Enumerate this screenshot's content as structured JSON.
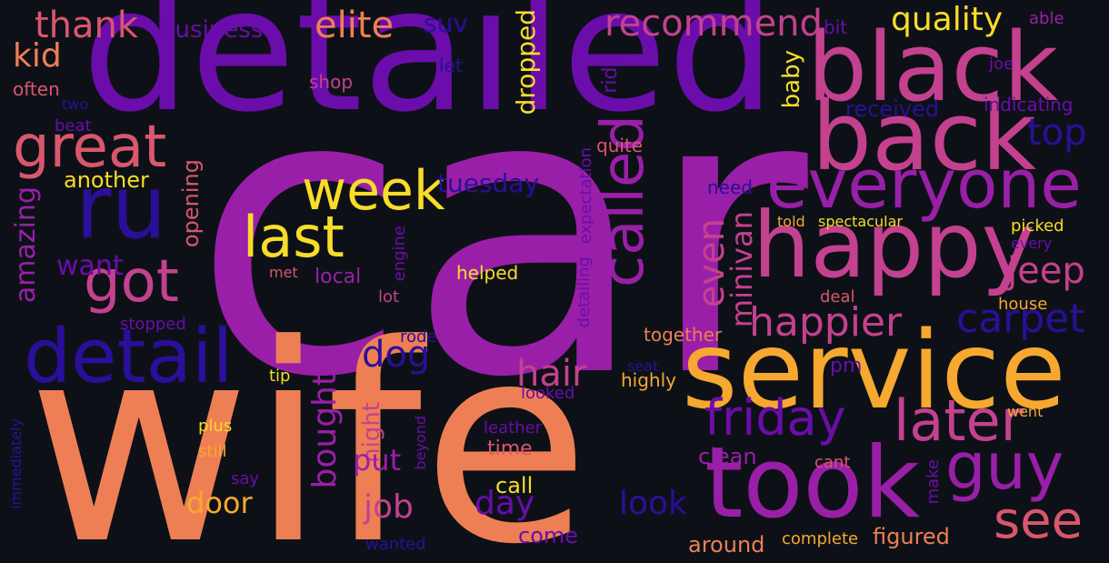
{
  "palette": {
    "background": "#0d1117",
    "deep_blue": "#2a0f9a",
    "violet": "#6a0dab",
    "purple": "#9a1fa8",
    "magenta": "#c4418f",
    "rose": "#d9576d",
    "salmon": "#ee7f55",
    "orange": "#f7a830",
    "yellow": "#f8dc2a"
  },
  "words": [
    {
      "text": "car",
      "color": "#9a1fa8"
    },
    {
      "text": "wife",
      "color": "#ee7f55"
    },
    {
      "text": "detailed",
      "color": "#6a0dab"
    },
    {
      "text": "service",
      "color": "#f7a830"
    },
    {
      "text": "took",
      "color": "#9a1fa8"
    },
    {
      "text": "black",
      "color": "#c4418f"
    },
    {
      "text": "back",
      "color": "#c4418f"
    },
    {
      "text": "happy",
      "color": "#c4418f"
    },
    {
      "text": "everyone",
      "color": "#9a1fa8"
    },
    {
      "text": "ru",
      "color": "#2a0f9a"
    },
    {
      "text": "detail",
      "color": "#2a0f9a"
    },
    {
      "text": "great",
      "color": "#d9576d"
    },
    {
      "text": "got",
      "color": "#c4418f"
    },
    {
      "text": "week",
      "color": "#f8dc2a"
    },
    {
      "text": "last",
      "color": "#f8dc2a"
    },
    {
      "text": "called",
      "color": "#9a1fa8"
    },
    {
      "text": "guy",
      "color": "#9a1fa8"
    },
    {
      "text": "later",
      "color": "#c4418f"
    },
    {
      "text": "friday",
      "color": "#6a0dab"
    },
    {
      "text": "see",
      "color": "#d9576d"
    },
    {
      "text": "happier",
      "color": "#c4418f"
    },
    {
      "text": "carpet",
      "color": "#2a0f9a"
    },
    {
      "text": "jeep",
      "color": "#c4418f"
    },
    {
      "text": "top",
      "color": "#2a0f9a"
    },
    {
      "text": "recommend",
      "color": "#c4418f"
    },
    {
      "text": "quality",
      "color": "#f8dc2a"
    },
    {
      "text": "elite",
      "color": "#ee7f55"
    },
    {
      "text": "thank",
      "color": "#d9576d"
    },
    {
      "text": "kid",
      "color": "#ee7f55"
    },
    {
      "text": "business",
      "color": "#6a0dab"
    },
    {
      "text": "suv",
      "color": "#2a0f9a"
    },
    {
      "text": "dropped",
      "color": "#f8dc2a"
    },
    {
      "text": "let",
      "color": "#2a0f9a"
    },
    {
      "text": "ride",
      "color": "#6a0dab"
    },
    {
      "text": "shop",
      "color": "#c4418f"
    },
    {
      "text": "baby",
      "color": "#f8dc2a"
    },
    {
      "text": "bit",
      "color": "#6a0dab"
    },
    {
      "text": "able",
      "color": "#9a1fa8"
    },
    {
      "text": "joe",
      "color": "#6a0dab"
    },
    {
      "text": "indicating",
      "color": "#6a0dab"
    },
    {
      "text": "received",
      "color": "#2a0f9a"
    },
    {
      "text": "often",
      "color": "#d9576d"
    },
    {
      "text": "two",
      "color": "#2a0f9a"
    },
    {
      "text": "beat",
      "color": "#6a0dab"
    },
    {
      "text": "another",
      "color": "#f8dc2a"
    },
    {
      "text": "amazing",
      "color": "#9a1fa8"
    },
    {
      "text": "opening",
      "color": "#d9576d"
    },
    {
      "text": "tuesday",
      "color": "#2a0f9a"
    },
    {
      "text": "quite",
      "color": "#d9576d"
    },
    {
      "text": "expectation",
      "color": "#6a0dab"
    },
    {
      "text": "need",
      "color": "#2a0f9a"
    },
    {
      "text": "told",
      "color": "#f7a830"
    },
    {
      "text": "spectacular",
      "color": "#f8dc2a"
    },
    {
      "text": "picked",
      "color": "#f8dc2a"
    },
    {
      "text": "every",
      "color": "#6a0dab"
    },
    {
      "text": "want",
      "color": "#6a0dab"
    },
    {
      "text": "met",
      "color": "#d9576d"
    },
    {
      "text": "local",
      "color": "#9a1fa8"
    },
    {
      "text": "engine",
      "color": "#6a0dab"
    },
    {
      "text": "lot",
      "color": "#c4418f"
    },
    {
      "text": "helped",
      "color": "#f8dc2a"
    },
    {
      "text": "detailing",
      "color": "#6a0dab"
    },
    {
      "text": "even",
      "color": "#c4418f"
    },
    {
      "text": "minivan",
      "color": "#c4418f"
    },
    {
      "text": "deal",
      "color": "#d9576d"
    },
    {
      "text": "house",
      "color": "#f7a830"
    },
    {
      "text": "stopped",
      "color": "#6a0dab"
    },
    {
      "text": "rode",
      "color": "#2a0f9a"
    },
    {
      "text": "together",
      "color": "#ee7f55"
    },
    {
      "text": "dog",
      "color": "#2a0f9a"
    },
    {
      "text": "hair",
      "color": "#c4418f"
    },
    {
      "text": "seat",
      "color": "#2a0f9a"
    },
    {
      "text": "pm",
      "color": "#6a0dab"
    },
    {
      "text": "tip",
      "color": "#f8dc2a"
    },
    {
      "text": "bought",
      "color": "#9a1fa8"
    },
    {
      "text": "night",
      "color": "#c4418f"
    },
    {
      "text": "looked",
      "color": "#6a0dab"
    },
    {
      "text": "highly",
      "color": "#f7a830"
    },
    {
      "text": "put",
      "color": "#9a1fa8"
    },
    {
      "text": "went",
      "color": "#f7a830"
    },
    {
      "text": "beyond",
      "color": "#6a0dab"
    },
    {
      "text": "leather",
      "color": "#6a0dab"
    },
    {
      "text": "plus",
      "color": "#f8dc2a"
    },
    {
      "text": "still",
      "color": "#f7a830"
    },
    {
      "text": "time",
      "color": "#d9576d"
    },
    {
      "text": "clean",
      "color": "#9a1fa8"
    },
    {
      "text": "cant",
      "color": "#d9576d"
    },
    {
      "text": "make",
      "color": "#6a0dab"
    },
    {
      "text": "say",
      "color": "#6a0dab"
    },
    {
      "text": "immediately",
      "color": "#2a0f9a"
    },
    {
      "text": "door",
      "color": "#f7a830"
    },
    {
      "text": "job",
      "color": "#c4418f"
    },
    {
      "text": "call",
      "color": "#f8dc2a"
    },
    {
      "text": "day",
      "color": "#6a0dab"
    },
    {
      "text": "look",
      "color": "#2a0f9a"
    },
    {
      "text": "come",
      "color": "#6a0dab"
    },
    {
      "text": "wanted",
      "color": "#2a0f9a"
    },
    {
      "text": "around",
      "color": "#ee7f55"
    },
    {
      "text": "complete",
      "color": "#f7a830"
    },
    {
      "text": "figured",
      "color": "#ee7f55"
    }
  ]
}
